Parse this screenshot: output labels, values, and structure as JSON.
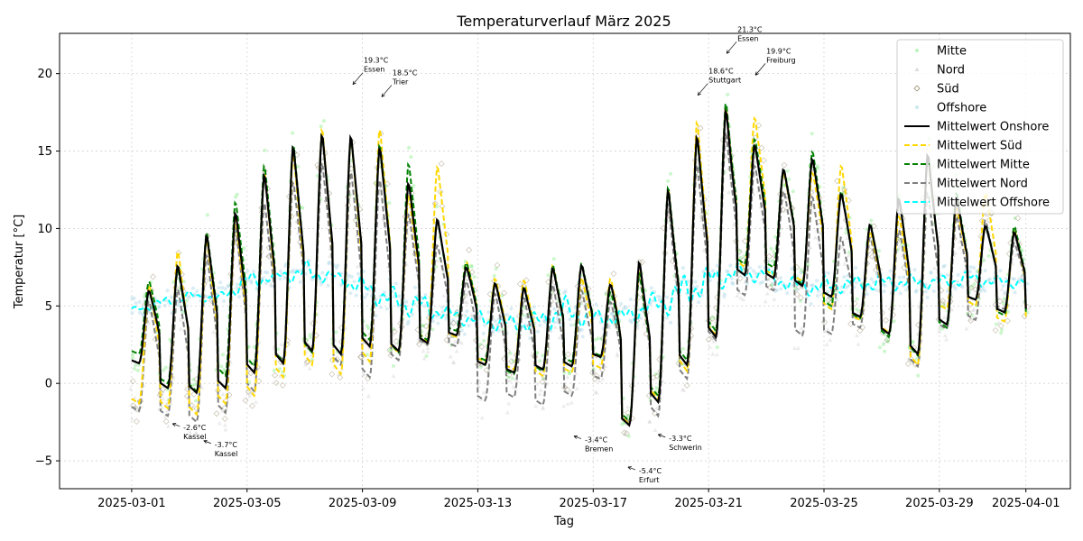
{
  "chart_data": {
    "type": "line",
    "title": "Temperaturverlauf März 2025",
    "xlabel": "Tag",
    "ylabel": "Temperatur [°C]",
    "xlim": [
      "2025-02-26T12:00",
      "2025-04-02T13:00"
    ],
    "ylim": [
      -6.8,
      22.6
    ],
    "x_ticks": [
      "2025-03-01",
      "2025-03-05",
      "2025-03-09",
      "2025-03-13",
      "2025-03-17",
      "2025-03-21",
      "2025-03-25",
      "2025-03-29",
      "2025-04-01"
    ],
    "y_ticks": [
      -5,
      0,
      5,
      10,
      15,
      20
    ],
    "grid": true,
    "legend_position": "top-right",
    "legend": [
      {
        "label": "Mitte",
        "kind": "marker",
        "marker": "dot",
        "color": "#90ee90"
      },
      {
        "label": "Nord",
        "kind": "marker",
        "marker": "triangle",
        "color": "#c8c8c8"
      },
      {
        "label": "Süd",
        "kind": "marker",
        "marker": "diamond",
        "color": "#8b7d5a"
      },
      {
        "label": "Offshore",
        "kind": "marker",
        "marker": "dot",
        "color": "#add8e6"
      },
      {
        "label": "Mittelwert Onshore",
        "kind": "line",
        "dash": "solid",
        "color": "#000000"
      },
      {
        "label": "Mittelwert Süd",
        "kind": "line",
        "dash": "dashed",
        "color": "#ffd700"
      },
      {
        "label": "Mittelwert Mitte",
        "kind": "line",
        "dash": "dashed",
        "color": "#008000"
      },
      {
        "label": "Mittelwert Nord",
        "kind": "line",
        "dash": "dashed",
        "color": "#808080"
      },
      {
        "label": "Mittelwert Offshore",
        "kind": "line",
        "dash": "dashed",
        "color": "#00ffff"
      }
    ],
    "daily": {
      "dates": [
        "2025-03-01",
        "2025-03-02",
        "2025-03-03",
        "2025-03-04",
        "2025-03-05",
        "2025-03-06",
        "2025-03-07",
        "2025-03-08",
        "2025-03-09",
        "2025-03-10",
        "2025-03-11",
        "2025-03-12",
        "2025-03-13",
        "2025-03-14",
        "2025-03-15",
        "2025-03-16",
        "2025-03-17",
        "2025-03-18",
        "2025-03-19",
        "2025-03-20",
        "2025-03-21",
        "2025-03-22",
        "2025-03-23",
        "2025-03-24",
        "2025-03-25",
        "2025-03-26",
        "2025-03-27",
        "2025-03-28",
        "2025-03-29",
        "2025-03-30",
        "2025-03-31"
      ],
      "onshore_min": [
        1.3,
        -0.3,
        -0.6,
        -0.3,
        0.7,
        1.3,
        2.1,
        1.9,
        2.4,
        2.1,
        2.6,
        3.1,
        1.2,
        0.7,
        0.9,
        1.1,
        1.7,
        -2.7,
        -1.2,
        1.2,
        3.0,
        7.0,
        6.8,
        6.3,
        5.6,
        4.3,
        3.2,
        1.9,
        3.8,
        5.4,
        4.6
      ],
      "onshore_max": [
        6.1,
        7.8,
        9.8,
        11.3,
        13.8,
        15.6,
        16.4,
        16.3,
        15.5,
        13.2,
        10.8,
        7.6,
        6.6,
        6.3,
        7.6,
        7.8,
        6.5,
        8.1,
        12.8,
        16.3,
        18.0,
        15.6,
        14.0,
        14.7,
        12.4,
        10.4,
        12.1,
        15.1,
        12.2,
        10.3,
        9.9
      ],
      "sued_min": [
        -1.3,
        -1.6,
        -2.0,
        -1.3,
        -0.8,
        0.4,
        1.2,
        0.6,
        1.4,
        2.0,
        2.7,
        3.0,
        1.4,
        0.9,
        0.5,
        0.7,
        1.0,
        -2.6,
        -1.0,
        0.8,
        3.1,
        7.5,
        7.0,
        6.6,
        4.8,
        4.1,
        3.3,
        1.2,
        4.8,
        5.0,
        4.0
      ],
      "sued_max": [
        6.6,
        8.8,
        9.6,
        11.0,
        14.0,
        15.2,
        16.8,
        16.3,
        16.8,
        12.4,
        14.3,
        8.0,
        6.9,
        6.8,
        7.8,
        7.0,
        6.9,
        7.6,
        12.9,
        17.3,
        18.2,
        17.4,
        13.8,
        13.8,
        14.3,
        10.0,
        11.0,
        15.0,
        11.5,
        12.5,
        10.1
      ],
      "mitte_min": [
        1.9,
        0.0,
        -0.5,
        0.5,
        1.1,
        1.4,
        2.0,
        1.9,
        2.8,
        2.0,
        2.8,
        3.4,
        1.5,
        0.6,
        0.8,
        1.4,
        1.8,
        -2.4,
        -0.8,
        1.5,
        3.4,
        7.7,
        7.5,
        6.4,
        5.0,
        4.2,
        3.0,
        1.8,
        3.6,
        5.4,
        4.4
      ],
      "mitte_max": [
        6.7,
        7.5,
        10.0,
        12.0,
        14.4,
        15.8,
        16.4,
        16.2,
        15.7,
        14.5,
        10.7,
        7.9,
        6.6,
        6.4,
        7.8,
        7.9,
        6.0,
        7.4,
        13.0,
        16.1,
        18.5,
        16.0,
        14.0,
        15.2,
        12.6,
        10.5,
        12.2,
        15.1,
        12.5,
        10.3,
        10.3
      ],
      "nord_min": [
        -1.8,
        -2.1,
        -2.5,
        -1.9,
        -0.5,
        1.5,
        2.0,
        1.2,
        0.4,
        1.5,
        2.5,
        2.4,
        -1.1,
        -0.9,
        -1.4,
        -0.8,
        0.3,
        -2.5,
        -2.1,
        0.3,
        2.8,
        5.7,
        6.0,
        3.1,
        3.2,
        3.6,
        3.2,
        1.1,
        3.5,
        4.1,
        4.8
      ],
      "nord_max": [
        5.5,
        6.3,
        8.6,
        10.4,
        12.0,
        13.3,
        14.5,
        14.0,
        13.5,
        11.2,
        9.1,
        6.7,
        6.0,
        5.7,
        6.6,
        6.2,
        5.4,
        7.2,
        12.0,
        14.5,
        16.5,
        14.3,
        12.6,
        12.3,
        9.6,
        9.6,
        10.1,
        12.6,
        11.0,
        10.7,
        9.2
      ],
      "offshore_min": [
        4.6,
        4.7,
        5.3,
        5.2,
        5.8,
        6.6,
        6.3,
        6.5,
        5.4,
        4.4,
        4.0,
        3.9,
        3.4,
        3.2,
        3.0,
        3.6,
        3.5,
        3.6,
        4.1,
        4.3,
        5.5,
        6.5,
        6.4,
        5.6,
        5.5,
        5.9,
        5.8,
        6.0,
        6.0,
        6.2,
        6.1
      ],
      "offshore_max": [
        4.9,
        5.6,
        6.0,
        5.8,
        7.4,
        7.2,
        8.1,
        7.3,
        7.0,
        6.4,
        6.0,
        5.0,
        4.8,
        4.5,
        4.8,
        5.8,
        4.9,
        4.9,
        5.9,
        7.2,
        7.8,
        7.8,
        7.6,
        7.0,
        7.0,
        7.0,
        7.2,
        7.1,
        7.0,
        7.4,
        7.0
      ]
    },
    "annotations": [
      {
        "text": "-2.6°C",
        "place": "Kassel",
        "x": "2025-03-02T10:00",
        "y": -2.6
      },
      {
        "text": "-3.7°C",
        "place": "Kassel",
        "x": "2025-03-03T12:00",
        "y": -3.7
      },
      {
        "text": "19.3°C",
        "place": "Essen",
        "x": "2025-03-08T16:00",
        "y": 19.3
      },
      {
        "text": "18.5°C",
        "place": "Trier",
        "x": "2025-03-09T16:00",
        "y": 18.5
      },
      {
        "text": "-3.4°C",
        "place": "Bremen",
        "x": "2025-03-16T08:00",
        "y": -3.4
      },
      {
        "text": "-5.4°C",
        "place": "Erfurt",
        "x": "2025-03-18T05:00",
        "y": -5.4
      },
      {
        "text": "-3.3°C",
        "place": "Schwerin",
        "x": "2025-03-19T06:00",
        "y": -3.3
      },
      {
        "text": "18.6°C",
        "place": "Stuttgart",
        "x": "2025-03-20T15:00",
        "y": 18.6
      },
      {
        "text": "21.3°C",
        "place": "Essen",
        "x": "2025-03-21T15:00",
        "y": 21.3
      },
      {
        "text": "19.9°C",
        "place": "Freiburg",
        "x": "2025-03-22T15:00",
        "y": 19.9
      }
    ]
  }
}
